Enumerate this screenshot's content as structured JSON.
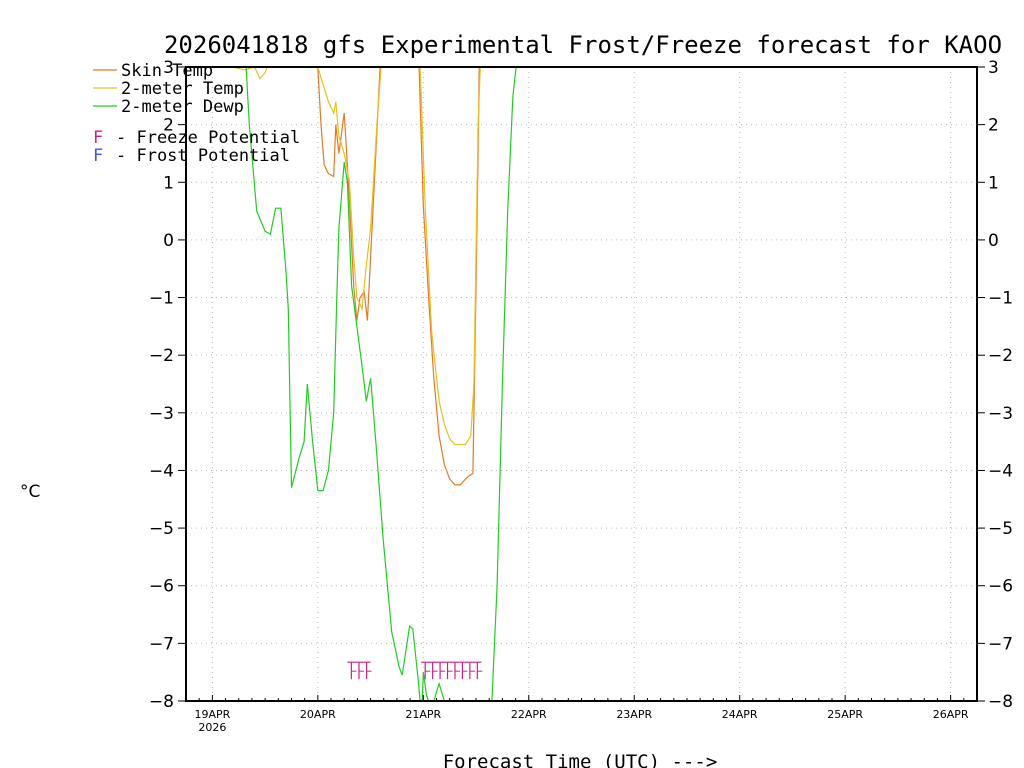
{
  "chart_data": {
    "type": "line",
    "title": "2026041818 gfs Experimental Frost/Freeze forecast for KAOO",
    "ylabel": "°C",
    "xlabel": "Forecast Time (UTC) --->",
    "ylim": [
      -8,
      3
    ],
    "yticks": [
      3,
      2,
      1,
      0,
      -1,
      -2,
      -3,
      -4,
      -5,
      -6,
      -7,
      -8
    ],
    "xlim": [
      18.75,
      26.25
    ],
    "xticks": [
      {
        "day": 19,
        "label": "19APR",
        "sub": "2026"
      },
      {
        "day": 20,
        "label": "20APR",
        "sub": ""
      },
      {
        "day": 21,
        "label": "21APR",
        "sub": ""
      },
      {
        "day": 22,
        "label": "22APR",
        "sub": ""
      },
      {
        "day": 23,
        "label": "23APR",
        "sub": ""
      },
      {
        "day": 24,
        "label": "24APR",
        "sub": ""
      },
      {
        "day": 25,
        "label": "25APR",
        "sub": ""
      },
      {
        "day": 26,
        "label": "26APR",
        "sub": ""
      }
    ],
    "legend": {
      "location": "top-left",
      "lines": [
        {
          "label": "Skin Temp",
          "color": "#e07b28"
        },
        {
          "label": "2-meter Temp",
          "color": "#e8c020"
        },
        {
          "label": "2-meter Dewp",
          "color": "#22cc22"
        }
      ],
      "markers": [
        {
          "symbol": "F",
          "label": "- Freeze Potential",
          "color": "#cc2288"
        },
        {
          "symbol": "F",
          "label": "- Frost Potential",
          "color": "#4455dd"
        }
      ]
    },
    "series": [
      {
        "name": "Skin Temp",
        "color": "#e07b28",
        "segments": [
          [
            [
              20.0,
              3.0
            ],
            [
              20.03,
              2.0
            ],
            [
              20.06,
              1.3
            ],
            [
              20.1,
              1.15
            ],
            [
              20.15,
              1.1
            ],
            [
              20.17,
              2.0
            ],
            [
              20.2,
              1.5
            ],
            [
              20.25,
              2.2
            ],
            [
              20.28,
              1.3
            ],
            [
              20.31,
              0.3
            ],
            [
              20.34,
              -0.8
            ],
            [
              20.37,
              -1.4
            ],
            [
              20.4,
              -1.0
            ],
            [
              20.44,
              -0.9
            ],
            [
              20.47,
              -1.4
            ],
            [
              20.5,
              -0.3
            ],
            [
              20.55,
              1.5
            ],
            [
              20.59,
              3.0
            ]
          ],
          [
            [
              20.96,
              3.0
            ],
            [
              21.0,
              0.6
            ],
            [
              21.05,
              -1.0
            ],
            [
              21.1,
              -2.4
            ],
            [
              21.15,
              -3.4
            ],
            [
              21.2,
              -3.9
            ],
            [
              21.25,
              -4.15
            ],
            [
              21.3,
              -4.25
            ],
            [
              21.35,
              -4.25
            ],
            [
              21.4,
              -4.15
            ],
            [
              21.43,
              -4.1
            ],
            [
              21.47,
              -4.05
            ],
            [
              21.5,
              -0.8
            ],
            [
              21.52,
              1.5
            ],
            [
              21.53,
              3.0
            ]
          ]
        ]
      },
      {
        "name": "2-meter Temp",
        "color": "#e8c020",
        "segments": [
          [
            [
              19.2,
              3.0
            ],
            [
              19.3,
              2.95
            ],
            [
              19.4,
              3.0
            ],
            [
              19.45,
              2.8
            ],
            [
              19.5,
              2.9
            ],
            [
              19.52,
              3.0
            ]
          ],
          [
            [
              20.0,
              3.0
            ],
            [
              20.05,
              2.7
            ],
            [
              20.1,
              2.4
            ],
            [
              20.15,
              2.2
            ],
            [
              20.17,
              2.4
            ],
            [
              20.2,
              1.8
            ],
            [
              20.25,
              1.5
            ],
            [
              20.3,
              1.0
            ],
            [
              20.34,
              -0.3
            ],
            [
              20.37,
              -1.0
            ],
            [
              20.42,
              -1.2
            ],
            [
              20.45,
              -0.6
            ],
            [
              20.5,
              0.2
            ],
            [
              20.56,
              2.0
            ],
            [
              20.6,
              3.0
            ]
          ],
          [
            [
              20.97,
              3.0
            ],
            [
              21.02,
              0.5
            ],
            [
              21.08,
              -1.6
            ],
            [
              21.15,
              -2.8
            ],
            [
              21.2,
              -3.2
            ],
            [
              21.25,
              -3.45
            ],
            [
              21.3,
              -3.55
            ],
            [
              21.35,
              -3.55
            ],
            [
              21.4,
              -3.55
            ],
            [
              21.45,
              -3.4
            ],
            [
              21.48,
              -2.5
            ],
            [
              21.52,
              2.0
            ],
            [
              21.54,
              3.0
            ]
          ]
        ]
      },
      {
        "name": "2-meter Dewp",
        "color": "#22cc22",
        "segments": [
          [
            [
              19.32,
              3.0
            ],
            [
              19.35,
              2.0
            ],
            [
              19.42,
              0.5
            ],
            [
              19.5,
              0.15
            ],
            [
              19.55,
              0.1
            ],
            [
              19.6,
              0.55
            ],
            [
              19.65,
              0.55
            ],
            [
              19.7,
              -0.6
            ],
            [
              19.72,
              -1.2
            ],
            [
              19.75,
              -4.3
            ],
            [
              19.82,
              -3.8
            ],
            [
              19.87,
              -3.5
            ],
            [
              19.9,
              -2.5
            ],
            [
              19.95,
              -3.5
            ],
            [
              20.0,
              -4.35
            ],
            [
              20.05,
              -4.35
            ],
            [
              20.1,
              -4.0
            ],
            [
              20.15,
              -3.0
            ],
            [
              20.18,
              -1.0
            ],
            [
              20.2,
              0.2
            ],
            [
              20.25,
              1.35
            ],
            [
              20.28,
              1.0
            ],
            [
              20.32,
              -0.8
            ],
            [
              20.37,
              -1.5
            ],
            [
              20.42,
              -2.2
            ],
            [
              20.46,
              -2.8
            ],
            [
              20.5,
              -2.4
            ],
            [
              20.55,
              -3.5
            ],
            [
              20.62,
              -5.2
            ],
            [
              20.7,
              -6.8
            ],
            [
              20.77,
              -7.4
            ],
            [
              20.8,
              -7.55
            ],
            [
              20.87,
              -6.7
            ],
            [
              20.9,
              -6.75
            ],
            [
              20.95,
              -7.6
            ],
            [
              20.97,
              -8.0
            ]
          ],
          [
            [
              20.99,
              -8.0
            ],
            [
              21.0,
              -7.5
            ],
            [
              21.03,
              -7.9
            ],
            [
              21.05,
              -8.0
            ]
          ],
          [
            [
              21.1,
              -8.0
            ],
            [
              21.15,
              -7.7
            ],
            [
              21.2,
              -8.0
            ]
          ],
          [
            [
              21.65,
              -8.0
            ],
            [
              21.7,
              -6.0
            ],
            [
              21.75,
              -2.5
            ],
            [
              21.8,
              0.5
            ],
            [
              21.85,
              2.5
            ],
            [
              21.88,
              3.0
            ]
          ]
        ]
      }
    ],
    "freeze_markers": {
      "color": "#cc2288",
      "level": -7.5,
      "groups": [
        {
          "x_start": 20.28,
          "x_end": 20.5,
          "count": 3
        },
        {
          "x_start": 20.98,
          "x_end": 21.55,
          "count": 8
        }
      ]
    }
  }
}
